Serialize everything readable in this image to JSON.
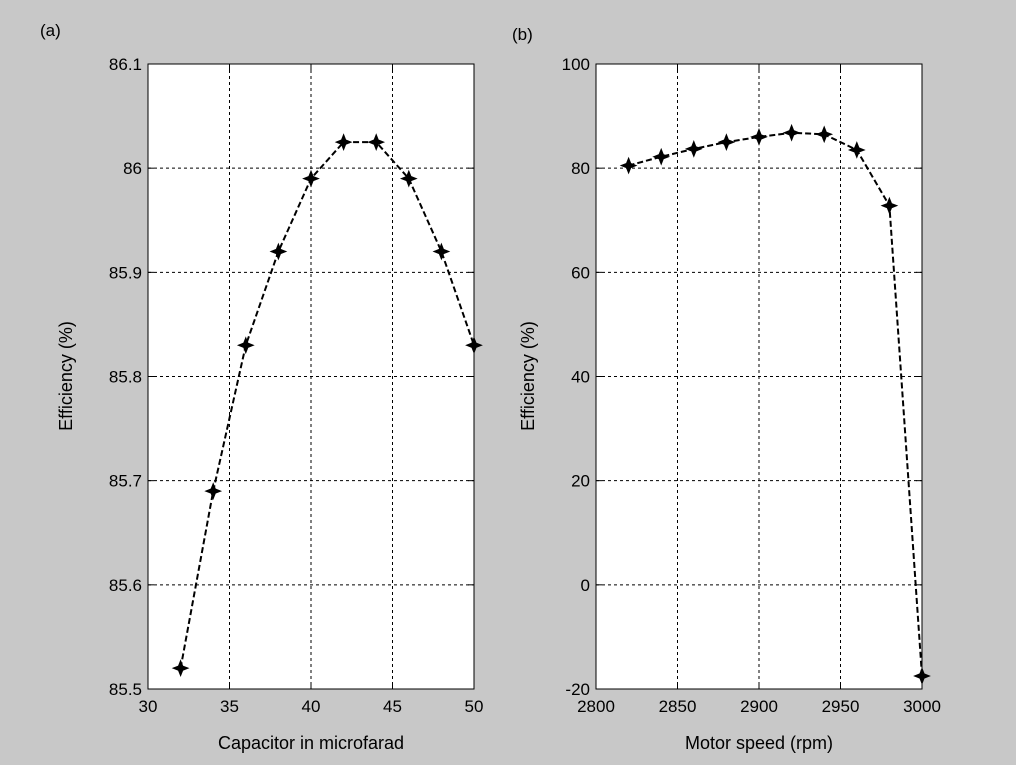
{
  "chart_data": [
    {
      "panel_label": "(a)",
      "type": "line",
      "xlabel": "Capacitor in microfarad",
      "ylabel": "Efficiency (%)",
      "xlim": [
        30,
        50
      ],
      "ylim": [
        85.5,
        86.1
      ],
      "xticks": [
        30,
        35,
        40,
        45,
        50
      ],
      "xtick_labels": [
        "30",
        "35",
        "40",
        "45",
        "50"
      ],
      "yticks": [
        85.5,
        85.6,
        85.7,
        85.8,
        85.9,
        86,
        86.1
      ],
      "ytick_labels": [
        "85.5",
        "85.6",
        "85.7",
        "85.8",
        "85.9",
        "86",
        "86.1"
      ],
      "grid": true,
      "line_style": "dashed",
      "marker": "star",
      "series": [
        {
          "x": [
            32,
            34,
            36,
            38,
            40,
            42,
            44,
            46,
            48,
            50
          ],
          "y": [
            85.52,
            85.69,
            85.83,
            85.92,
            85.99,
            86.025,
            86.025,
            85.99,
            85.92,
            85.83
          ]
        }
      ]
    },
    {
      "panel_label": "(b)",
      "type": "line",
      "xlabel": "Motor speed (rpm)",
      "ylabel": "Efficiency (%)",
      "xlim": [
        2800,
        3000
      ],
      "ylim": [
        -20,
        100
      ],
      "xticks": [
        2800,
        2850,
        2900,
        2950,
        3000
      ],
      "xtick_labels": [
        "2800",
        "2850",
        "2900",
        "2950",
        "3000"
      ],
      "yticks": [
        -20,
        0,
        20,
        40,
        60,
        80,
        100
      ],
      "ytick_labels": [
        "-20",
        "0",
        "20",
        "40",
        "60",
        "80",
        "100"
      ],
      "grid": true,
      "line_style": "dashed",
      "marker": "star",
      "series": [
        {
          "x": [
            2820,
            2840,
            2860,
            2880,
            2900,
            2920,
            2940,
            2960,
            2980,
            3000
          ],
          "y": [
            80.5,
            82.2,
            83.7,
            85,
            86,
            86.8,
            86.5,
            83.5,
            72.8,
            -17.5
          ]
        }
      ]
    }
  ]
}
